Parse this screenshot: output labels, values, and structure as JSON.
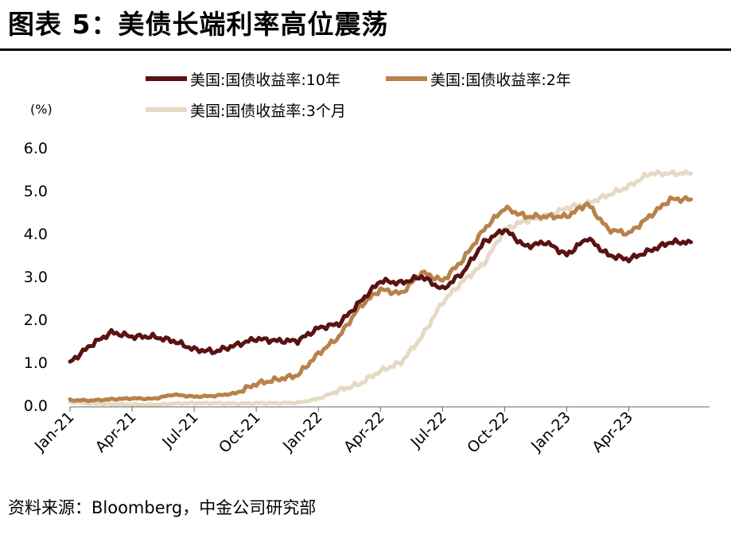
{
  "title": "图表 5：美债长端利率高位震荡",
  "source": "资料来源：Bloomberg，中金公司研究部",
  "colors": {
    "s10y": "#5a1212",
    "s2y": "#b8824a",
    "s3m": "#e6dac5"
  },
  "chart_data": {
    "type": "line",
    "unit_label": "(%)",
    "ylim": [
      0.0,
      6.0
    ],
    "yticks": [
      "6.0",
      "5.0",
      "4.0",
      "3.0",
      "2.0",
      "1.0",
      "0.0"
    ],
    "ytick_values": [
      6,
      5,
      4,
      3,
      2,
      1,
      0
    ],
    "x_dates": [
      "2021-01",
      "2021-02",
      "2021-03",
      "2021-04",
      "2021-05",
      "2021-06",
      "2021-07",
      "2021-08",
      "2021-09",
      "2021-10",
      "2021-11",
      "2021-12",
      "2022-01",
      "2022-02",
      "2022-03",
      "2022-04",
      "2022-05",
      "2022-06",
      "2022-07",
      "2022-08",
      "2022-09",
      "2022-10",
      "2022-11",
      "2022-12",
      "2023-01",
      "2023-02",
      "2023-03",
      "2023-04",
      "2023-05",
      "2023-06",
      "2023-07"
    ],
    "xticks": [
      {
        "label": "Jan-21",
        "month": "2021-01"
      },
      {
        "label": "Apr-21",
        "month": "2021-04"
      },
      {
        "label": "Jul-21",
        "month": "2021-07"
      },
      {
        "label": "Oct-21",
        "month": "2021-10"
      },
      {
        "label": "Jan-22",
        "month": "2022-01"
      },
      {
        "label": "Apr-22",
        "month": "2022-04"
      },
      {
        "label": "Jul-22",
        "month": "2022-07"
      },
      {
        "label": "Oct-22",
        "month": "2022-10"
      },
      {
        "label": "Jan-23",
        "month": "2023-01"
      },
      {
        "label": "Apr-23",
        "month": "2023-04"
      }
    ],
    "grid": false,
    "legend_position": "top",
    "series": [
      {
        "name": "美国:国债收益率:3个月",
        "color_key": "s3m",
        "values": [
          0.08,
          0.04,
          0.03,
          0.02,
          0.01,
          0.04,
          0.05,
          0.05,
          0.04,
          0.05,
          0.05,
          0.06,
          0.15,
          0.35,
          0.5,
          0.8,
          1.0,
          1.6,
          2.4,
          2.9,
          3.3,
          4.1,
          4.3,
          4.4,
          4.6,
          4.7,
          4.9,
          5.1,
          5.4,
          5.4,
          5.4
        ]
      },
      {
        "name": "美国:国债收益率:2年",
        "color_key": "s2y",
        "values": [
          0.12,
          0.11,
          0.14,
          0.16,
          0.15,
          0.25,
          0.2,
          0.22,
          0.28,
          0.5,
          0.6,
          0.7,
          1.2,
          1.6,
          2.3,
          2.7,
          2.6,
          3.1,
          2.9,
          3.4,
          4.1,
          4.6,
          4.4,
          4.4,
          4.4,
          4.7,
          4.1,
          4.0,
          4.4,
          4.8,
          4.8
        ]
      },
      {
        "name": "美国:国债收益率:10年",
        "color_key": "s10y",
        "values": [
          1.0,
          1.4,
          1.7,
          1.6,
          1.6,
          1.5,
          1.3,
          1.25,
          1.4,
          1.55,
          1.5,
          1.5,
          1.8,
          1.9,
          2.4,
          2.9,
          2.85,
          3.0,
          2.7,
          3.1,
          3.8,
          4.1,
          3.7,
          3.8,
          3.5,
          3.9,
          3.5,
          3.4,
          3.6,
          3.8,
          3.8
        ]
      }
    ]
  }
}
